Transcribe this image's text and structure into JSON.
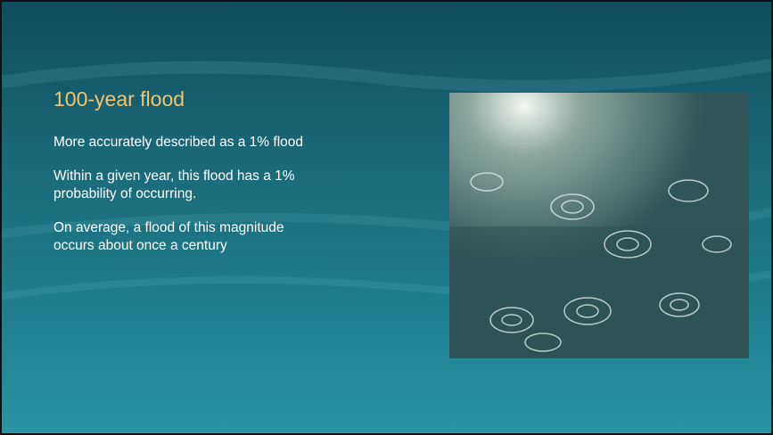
{
  "slide": {
    "title": "100-year flood",
    "paragraphs": [
      {
        "lines": [
          "More accurately described as a 1% flood"
        ]
      },
      {
        "lines": [
          "Within a given year, this flood has a 1%",
          "probability of occurring."
        ]
      },
      {
        "lines": [
          "On average, a flood of this magnitude",
          "occurs about once a century"
        ]
      }
    ]
  }
}
